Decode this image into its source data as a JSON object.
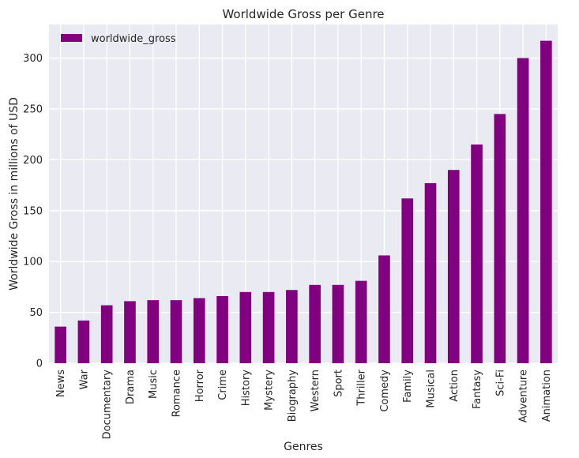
{
  "chart_data": {
    "type": "bar",
    "title": "Worldwide Gross per Genre",
    "xlabel": "Genres",
    "ylabel": "Worldwide Gross in millions of USD",
    "categories": [
      "News",
      "War",
      "Documentary",
      "Drama",
      "Music",
      "Romance",
      "Horror",
      "Crime",
      "History",
      "Mystery",
      "Biography",
      "Western",
      "Sport",
      "Thriller",
      "Comedy",
      "Family",
      "Musical",
      "Action",
      "Fantasy",
      "Sci-Fi",
      "Adventure",
      "Animation"
    ],
    "series": [
      {
        "name": "worldwide_gross",
        "color": "#800080",
        "values": [
          36,
          42,
          57,
          61,
          62,
          62,
          64,
          66,
          70,
          70,
          72,
          77,
          77,
          81,
          106,
          162,
          177,
          190,
          215,
          245,
          300,
          317
        ]
      }
    ],
    "ylim": [
      0,
      333
    ],
    "yticks": [
      0,
      50,
      100,
      150,
      200,
      250,
      300
    ],
    "grid": true,
    "legend_position": "top-left",
    "background_color": "#EAEAF2",
    "grid_color": "#ffffff"
  }
}
